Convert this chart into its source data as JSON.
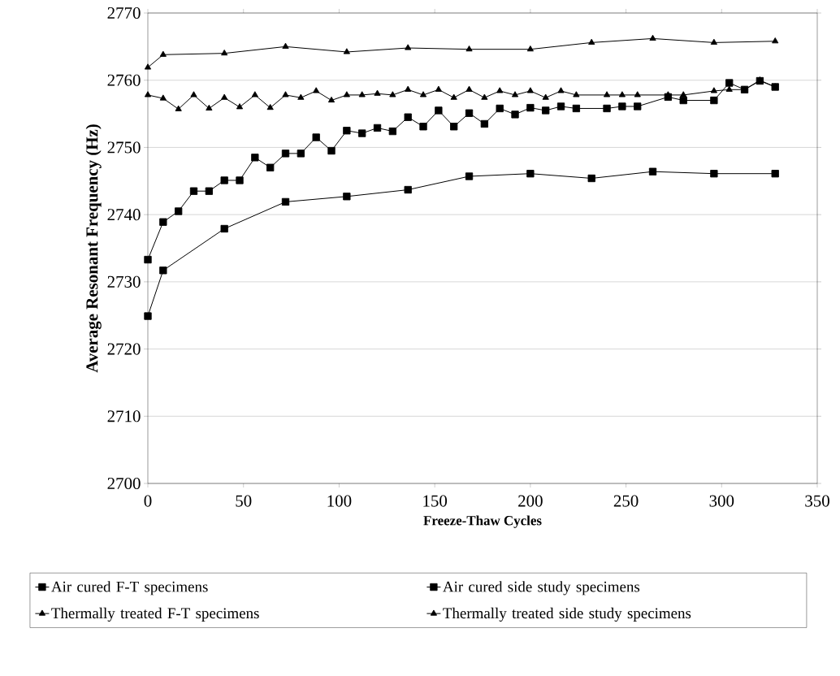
{
  "chart_data": {
    "type": "line",
    "xlabel": "Freeze-Thaw Cycles",
    "ylabel": "Average Resonant Frequency (Hz)",
    "xlim": [
      0,
      350
    ],
    "ylim": [
      2700,
      2770
    ],
    "xticks": [
      0,
      50,
      100,
      150,
      200,
      250,
      300,
      350
    ],
    "yticks": [
      2700,
      2710,
      2720,
      2730,
      2740,
      2750,
      2760,
      2770
    ],
    "grid": "y",
    "legend": "bottom",
    "line_style": "solid",
    "series": [
      {
        "name": "Air cured F-T specimens",
        "color": "#000000",
        "marker": "square",
        "x": [
          0,
          8,
          40,
          72,
          104,
          136,
          168,
          200,
          232,
          264,
          296,
          328
        ],
        "values": [
          2724.9,
          2731.7,
          2737.9,
          2741.9,
          2742.7,
          2743.7,
          2745.7,
          2746.1,
          2745.4,
          2746.4,
          2746.1,
          2746.1
        ]
      },
      {
        "name": "Air cured side study specimens",
        "color": "#000000",
        "marker": "square",
        "x": [
          0,
          8,
          16,
          24,
          32,
          40,
          48,
          56,
          64,
          72,
          80,
          88,
          96,
          104,
          112,
          120,
          128,
          136,
          144,
          152,
          160,
          168,
          176,
          184,
          192,
          200,
          208,
          216,
          224,
          240,
          248,
          256,
          272,
          280,
          296,
          304,
          312,
          320,
          328
        ],
        "values": [
          2733.3,
          2738.9,
          2740.5,
          2743.5,
          2743.5,
          2745.1,
          2745.1,
          2748.5,
          2747.0,
          2749.1,
          2749.1,
          2751.5,
          2749.5,
          2752.5,
          2752.1,
          2752.9,
          2752.4,
          2754.5,
          2753.1,
          2755.5,
          2753.1,
          2755.1,
          2753.5,
          2755.8,
          2754.9,
          2755.9,
          2755.5,
          2756.1,
          2755.8,
          2755.8,
          2756.1,
          2756.1,
          2757.5,
          2757.0,
          2757.0,
          2759.6,
          2758.6,
          2759.9,
          2759.0
        ]
      },
      {
        "name": "Thermally treated F-T specimens",
        "color": "#000000",
        "marker": "triangle",
        "x": [
          0,
          8,
          40,
          72,
          104,
          136,
          168,
          200,
          232,
          264,
          296,
          328
        ],
        "values": [
          2761.9,
          2763.8,
          2764.0,
          2765.0,
          2764.2,
          2764.8,
          2764.6,
          2764.6,
          2765.6,
          2766.2,
          2765.6,
          2765.8
        ]
      },
      {
        "name": "Thermally treated side study specimens",
        "color": "#000000",
        "marker": "triangle",
        "x": [
          0,
          8,
          16,
          24,
          32,
          40,
          48,
          56,
          64,
          72,
          80,
          88,
          96,
          104,
          112,
          120,
          128,
          136,
          144,
          152,
          160,
          168,
          176,
          184,
          192,
          200,
          208,
          216,
          224,
          240,
          248,
          256,
          272,
          280,
          296,
          304,
          312,
          320,
          328
        ],
        "values": [
          2757.8,
          2757.3,
          2755.7,
          2757.8,
          2755.8,
          2757.4,
          2756.0,
          2757.8,
          2755.9,
          2757.8,
          2757.4,
          2758.4,
          2757.0,
          2757.8,
          2757.8,
          2758.0,
          2757.8,
          2758.6,
          2757.8,
          2758.6,
          2757.4,
          2758.6,
          2757.4,
          2758.4,
          2757.8,
          2758.4,
          2757.4,
          2758.4,
          2757.8,
          2757.8,
          2757.8,
          2757.8,
          2757.8,
          2757.8,
          2758.4,
          2758.6,
          2758.6,
          2760.0,
          2759.0
        ]
      }
    ]
  }
}
